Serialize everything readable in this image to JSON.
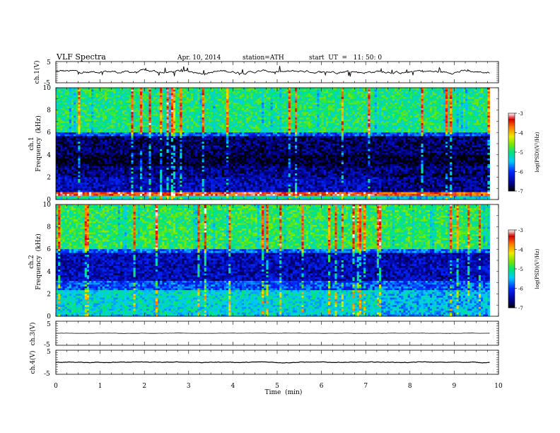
{
  "header": {
    "title": "VLF  Spectra",
    "date": "Apr. 10, 2014",
    "station": "station=ATH",
    "start": "start  UT  =   11: 50: 0"
  },
  "chart_data": [
    {
      "type": "line",
      "panel": "ch1-waveform",
      "ylabel": "ch.1(V)",
      "yticks": [
        "5",
        "-5"
      ],
      "ylim": [
        -5,
        5
      ],
      "trace_color": "#000000",
      "baseline_v": 0.2,
      "noise_v": 0.6
    },
    {
      "type": "heatmap",
      "panel": "ch1-spectrogram",
      "ylabel": "ch.1\nFrequency  (kHz)",
      "ylabel_lines": [
        "ch.1",
        "Frequency  (kHz)"
      ],
      "yticks": [
        "0",
        "2",
        "4",
        "6",
        "8",
        "10"
      ],
      "ylim": [
        0,
        10
      ],
      "xlim": [
        0,
        9.8
      ],
      "colorbar": {
        "label": "log(PSD)(V²/Hz)",
        "ticks": [
          "-3",
          "-4",
          "-5",
          "-6",
          "-7"
        ],
        "range": [
          -7,
          -3
        ]
      },
      "bands": [
        {
          "f": [
            0.0,
            0.35
          ],
          "logpsd": -5.2
        },
        {
          "f": [
            0.35,
            0.6
          ],
          "logpsd": -3.4
        },
        {
          "f": [
            0.6,
            2.0
          ],
          "logpsd": -6.4
        },
        {
          "f": [
            2.0,
            3.0
          ],
          "logpsd": -6.6
        },
        {
          "f": [
            3.0,
            4.0
          ],
          "logpsd": -6.9
        },
        {
          "f": [
            4.0,
            5.6
          ],
          "logpsd": -6.7
        },
        {
          "f": [
            5.6,
            6.0
          ],
          "logpsd": -5.9
        },
        {
          "f": [
            6.0,
            10.0
          ],
          "logpsd": -5.0
        }
      ],
      "change_at_min": 7.35
    },
    {
      "type": "heatmap",
      "panel": "ch2-spectrogram",
      "ylabel": "ch.2\nFrequency  (kHz)",
      "ylabel_lines": [
        "ch.2",
        "Frequency  (kHz)"
      ],
      "yticks": [
        "0",
        "2",
        "4",
        "6",
        "8",
        "10"
      ],
      "ylim": [
        0,
        10
      ],
      "xlim": [
        0,
        9.8
      ],
      "colorbar": {
        "label": "log(PSD)(V²/Hz)",
        "ticks": [
          "-3",
          "-4",
          "-5",
          "-6",
          "-7"
        ],
        "range": [
          -7,
          -3
        ]
      },
      "bands": [
        {
          "f": [
            0.0,
            0.25
          ],
          "logpsd": -5.4
        },
        {
          "f": [
            0.25,
            2.3
          ],
          "logpsd": -5.3
        },
        {
          "f": [
            2.3,
            3.2
          ],
          "logpsd": -5.9
        },
        {
          "f": [
            3.2,
            5.6
          ],
          "logpsd": -6.4
        },
        {
          "f": [
            5.6,
            6.0
          ],
          "logpsd": -5.8
        },
        {
          "f": [
            6.0,
            10.0
          ],
          "logpsd": -4.9
        }
      ],
      "change_at_min": 7.35
    },
    {
      "type": "line",
      "panel": "ch3-waveform",
      "ylabel": "ch.3(V)",
      "yticks": [
        "5",
        "-5"
      ],
      "ylim": [
        -5,
        5
      ],
      "trace_color": "#000000",
      "baseline_v": 0.0,
      "noise_v": 0.05
    },
    {
      "type": "line",
      "panel": "ch4-waveform",
      "ylabel": "ch.4(V)",
      "yticks": [
        "5",
        "-5"
      ],
      "ylim": [
        -5,
        5
      ],
      "trace_color": "#000000",
      "baseline_v": 0.0,
      "noise_v": 0.15
    }
  ],
  "xaxis": {
    "label": "Time  (min)",
    "ticks": [
      "0",
      "1",
      "2",
      "3",
      "4",
      "5",
      "6",
      "7",
      "8",
      "9",
      "10"
    ],
    "xlim": [
      0,
      10
    ],
    "data_end_min": 9.8
  }
}
